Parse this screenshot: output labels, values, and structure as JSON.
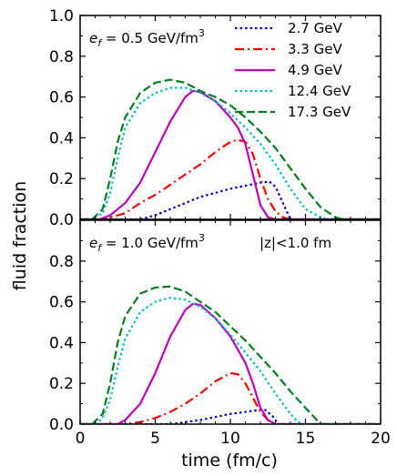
{
  "chart_data": [
    {
      "type": "line",
      "panel": "top",
      "annotation": "e_f = 0.5 GeV/fm^3",
      "annotation_parts": {
        "symbol": "e",
        "sub": "f",
        "text": " = 0.5 GeV/fm",
        "sup": "3"
      },
      "xlabel": "time (fm/c)",
      "ylabel": "fluid fraction",
      "xlim": [
        0,
        20
      ],
      "ylim": [
        0,
        1.0
      ],
      "xticks": [
        "0",
        "5",
        "10",
        "15",
        "20"
      ],
      "yticks": [
        "0.0",
        "0.2",
        "0.4",
        "0.6",
        "0.8",
        "1.0"
      ],
      "legend": {
        "placement": "top-right"
      },
      "series": [
        {
          "name": "2.7 GeV",
          "color": "#0000dd",
          "style": "dotted",
          "x": [
            0,
            4,
            5,
            6,
            7,
            8,
            9,
            10,
            11,
            12,
            12.6,
            13,
            13.5,
            14,
            20
          ],
          "y": [
            0,
            0,
            0.02,
            0.05,
            0.08,
            0.11,
            0.13,
            0.15,
            0.165,
            0.18,
            0.185,
            0.16,
            0.08,
            0.0,
            0
          ]
        },
        {
          "name": "3.3 GeV",
          "color": "#ff0000",
          "style": "dashdot",
          "x": [
            0,
            1.5,
            2,
            3,
            4,
            5,
            6,
            7,
            8,
            9,
            10,
            10.5,
            11,
            11.5,
            12,
            12.5,
            13,
            13.5,
            14,
            20
          ],
          "y": [
            0,
            0,
            0.01,
            0.03,
            0.08,
            0.12,
            0.17,
            0.22,
            0.27,
            0.33,
            0.38,
            0.39,
            0.38,
            0.32,
            0.2,
            0.1,
            0.04,
            0.01,
            0,
            0
          ]
        },
        {
          "name": "4.9 GeV",
          "color": "#c000c0",
          "style": "solid",
          "x": [
            0,
            1.3,
            2,
            3,
            4,
            5,
            6,
            7,
            7.5,
            8,
            9,
            10,
            10.5,
            11,
            11.5,
            12,
            12.5,
            13,
            20
          ],
          "y": [
            0,
            0,
            0.02,
            0.08,
            0.18,
            0.33,
            0.48,
            0.6,
            0.63,
            0.625,
            0.58,
            0.5,
            0.45,
            0.37,
            0.22,
            0.07,
            0.01,
            0,
            0
          ]
        },
        {
          "name": "12.4 GeV",
          "color": "#00c0c0",
          "style": "dotted",
          "x": [
            0,
            0.8,
            1.5,
            2,
            2.5,
            3,
            4,
            5,
            6,
            7,
            8,
            9,
            10,
            11,
            12,
            13,
            14,
            15,
            16,
            16.5,
            20
          ],
          "y": [
            0,
            0,
            0.03,
            0.13,
            0.3,
            0.45,
            0.57,
            0.62,
            0.645,
            0.645,
            0.62,
            0.58,
            0.52,
            0.45,
            0.37,
            0.27,
            0.15,
            0.05,
            0.01,
            0,
            0
          ]
        },
        {
          "name": "17.3 GeV",
          "color": "#00801a",
          "style": "dashed",
          "x": [
            0,
            0.8,
            1.5,
            2,
            2.5,
            3,
            4,
            5,
            6,
            7,
            8,
            9,
            10,
            11,
            12,
            13,
            14,
            15,
            16,
            17,
            17.5,
            20
          ],
          "y": [
            0,
            0,
            0.05,
            0.2,
            0.38,
            0.5,
            0.62,
            0.67,
            0.685,
            0.67,
            0.63,
            0.6,
            0.56,
            0.5,
            0.43,
            0.35,
            0.25,
            0.15,
            0.06,
            0.01,
            0,
            0
          ]
        }
      ]
    },
    {
      "type": "line",
      "panel": "bottom",
      "annotation": "e_f = 1.0 GeV/fm^3",
      "annotation_parts": {
        "symbol": "e",
        "sub": "f",
        "text": " = 1.0 GeV/fm",
        "sup": "3"
      },
      "annotation2": "|z|<1.0 fm",
      "xlabel": "time (fm/c)",
      "ylabel": "fluid fraction",
      "xlim": [
        0,
        20
      ],
      "ylim": [
        0,
        1.0
      ],
      "xticks": [
        "0",
        "5",
        "10",
        "15",
        "20"
      ],
      "yticks": [
        "0.0",
        "0.2",
        "0.4",
        "0.6",
        "0.8",
        "1.0"
      ],
      "series": [
        {
          "name": "2.7 GeV",
          "color": "#0000dd",
          "style": "dotted",
          "x": [
            0,
            6,
            7,
            8,
            9,
            10,
            11,
            12,
            12.3,
            12.8,
            13.2,
            20
          ],
          "y": [
            0,
            0,
            0.01,
            0.02,
            0.035,
            0.05,
            0.06,
            0.07,
            0.07,
            0.04,
            0,
            0
          ]
        },
        {
          "name": "3.3 GeV",
          "color": "#ff0000",
          "style": "dashdot",
          "x": [
            0,
            3,
            4,
            5,
            6,
            7,
            8,
            9,
            10,
            10.5,
            11,
            11.5,
            12,
            12.5,
            13,
            20
          ],
          "y": [
            0,
            0,
            0.01,
            0.03,
            0.06,
            0.1,
            0.15,
            0.21,
            0.25,
            0.245,
            0.2,
            0.13,
            0.06,
            0.02,
            0,
            0
          ]
        },
        {
          "name": "4.9 GeV",
          "color": "#c000c0",
          "style": "solid",
          "x": [
            0,
            2.5,
            3,
            4,
            5,
            6,
            7,
            7.5,
            8,
            9,
            10,
            11,
            11.5,
            12,
            12.5,
            13,
            20
          ],
          "y": [
            0,
            0,
            0.02,
            0.1,
            0.25,
            0.43,
            0.56,
            0.59,
            0.585,
            0.52,
            0.43,
            0.3,
            0.2,
            0.08,
            0.02,
            0,
            0
          ]
        },
        {
          "name": "12.4 GeV",
          "color": "#00c0c0",
          "style": "dotted",
          "x": [
            0,
            1,
            1.5,
            2,
            2.5,
            3,
            4,
            5,
            6,
            7,
            8,
            9,
            10,
            11,
            12,
            13,
            14,
            14.5,
            15,
            20
          ],
          "y": [
            0,
            0,
            0.03,
            0.12,
            0.28,
            0.42,
            0.55,
            0.6,
            0.62,
            0.61,
            0.575,
            0.52,
            0.44,
            0.35,
            0.26,
            0.15,
            0.05,
            0.01,
            0,
            0
          ]
        },
        {
          "name": "17.3 GeV",
          "color": "#00801a",
          "style": "dashed",
          "x": [
            0,
            0.8,
            1.5,
            2,
            2.5,
            3,
            4,
            5,
            6,
            7,
            8,
            9,
            10,
            11,
            12,
            13,
            14,
            15,
            15.5,
            16,
            20
          ],
          "y": [
            0,
            0,
            0.05,
            0.2,
            0.4,
            0.53,
            0.64,
            0.67,
            0.675,
            0.65,
            0.6,
            0.55,
            0.48,
            0.41,
            0.33,
            0.25,
            0.16,
            0.08,
            0.04,
            0,
            0
          ]
        }
      ]
    }
  ]
}
